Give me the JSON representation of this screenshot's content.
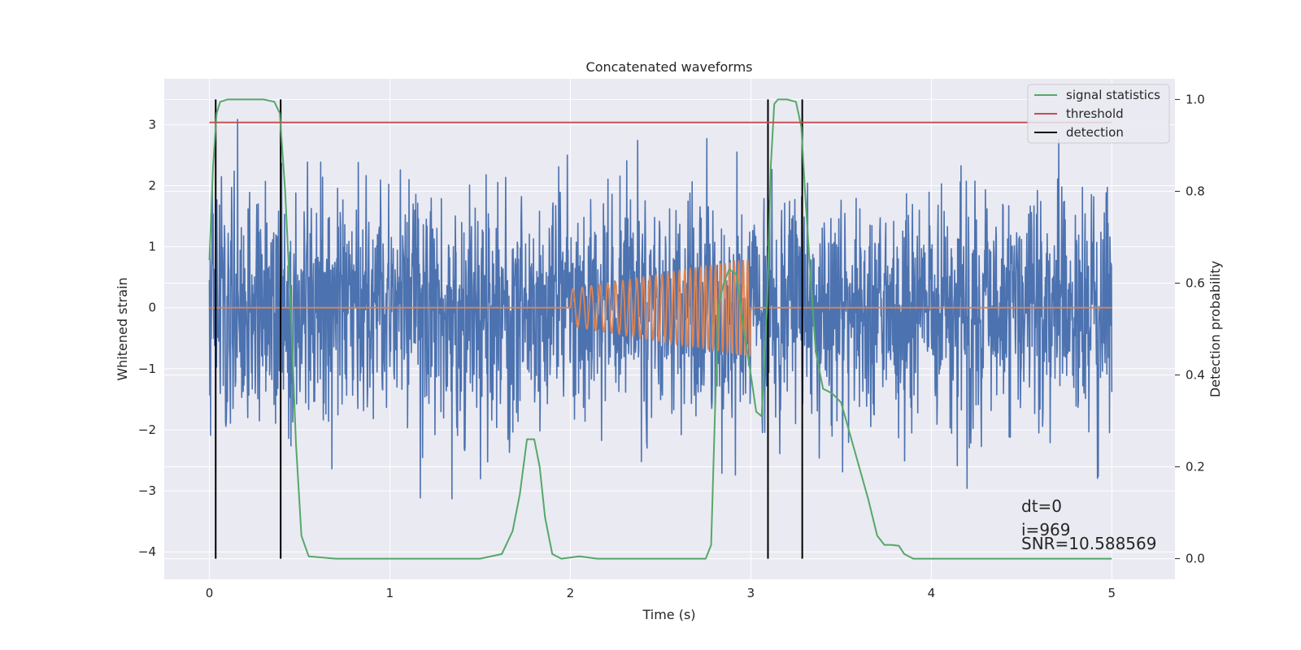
{
  "chart_data": {
    "type": "line",
    "title": "Concatenated waveforms",
    "xlabel": "Time (s)",
    "ylabel_left": "Whitened strain",
    "ylabel_right": "Detection probability",
    "xlim": [
      -0.25,
      5.35
    ],
    "ylim_left": [
      -4.45,
      3.75
    ],
    "ylim_right": [
      -0.045,
      1.045
    ],
    "x_ticks": [
      "0",
      "1",
      "2",
      "3",
      "4",
      "5"
    ],
    "y_ticks_left": [
      "3",
      "2",
      "1",
      "0",
      "−1",
      "−2",
      "−3",
      "−4"
    ],
    "y_ticks_right": [
      "1.0",
      "0.8",
      "0.6",
      "0.4",
      "0.2",
      "0.0"
    ],
    "grid": true,
    "legend_position": "top-right",
    "legend": [
      {
        "label": "signal statistics",
        "color": "#55a868"
      },
      {
        "label": "threshold",
        "color": "#c44e52"
      },
      {
        "label": "detection",
        "color": "#000000"
      }
    ],
    "series": [
      {
        "kind": "noise-strain",
        "color": "#4c72b0",
        "x_range": [
          0,
          5
        ],
        "approx_range": [
          -4.1,
          3.4
        ]
      },
      {
        "kind": "injected-chirp",
        "color": "#dd8452",
        "x_range": [
          2.0,
          3.0
        ],
        "amplitude_start": 0.3,
        "amplitude_end": 0.8,
        "cycles": 30
      },
      {
        "name": "signal statistics",
        "color": "#55a868",
        "axis": "right",
        "x": [
          0.0,
          0.02,
          0.04,
          0.06,
          0.1,
          0.15,
          0.3,
          0.36,
          0.39,
          0.42,
          0.45,
          0.48,
          0.51,
          0.55,
          0.7,
          1.5,
          1.62,
          1.68,
          1.72,
          1.76,
          1.8,
          1.83,
          1.86,
          1.9,
          1.95,
          2.05,
          2.15,
          2.5,
          2.75,
          2.78,
          2.8,
          2.82,
          2.85,
          2.88,
          2.92,
          2.96,
          3.0,
          3.03,
          3.06,
          3.09,
          3.11,
          3.13,
          3.15,
          3.2,
          3.25,
          3.28,
          3.3,
          3.33,
          3.36,
          3.4,
          3.45,
          3.5,
          3.55,
          3.6,
          3.65,
          3.7,
          3.74,
          3.78,
          3.82,
          3.85,
          3.9,
          4.0,
          4.5,
          5.0
        ],
        "y": [
          0.65,
          0.85,
          0.97,
          0.995,
          1.0,
          1.0,
          1.0,
          0.995,
          0.97,
          0.8,
          0.55,
          0.25,
          0.05,
          0.005,
          0.0,
          0.0,
          0.01,
          0.06,
          0.14,
          0.26,
          0.26,
          0.2,
          0.09,
          0.01,
          0.0,
          0.005,
          0.0,
          0.0,
          0.0,
          0.03,
          0.3,
          0.55,
          0.6,
          0.63,
          0.62,
          0.5,
          0.4,
          0.32,
          0.31,
          0.55,
          0.85,
          0.99,
          1.0,
          1.0,
          0.995,
          0.94,
          0.8,
          0.62,
          0.45,
          0.37,
          0.36,
          0.34,
          0.27,
          0.2,
          0.13,
          0.05,
          0.03,
          0.03,
          0.028,
          0.01,
          0.0,
          0.0,
          0.0,
          0.0
        ]
      },
      {
        "name": "threshold",
        "color": "#c44e52",
        "axis": "right",
        "x": [
          0,
          5
        ],
        "y": [
          0.95,
          0.95
        ]
      }
    ],
    "detections": [
      0.035,
      0.395,
      3.095,
      3.285
    ],
    "annotations": [
      "dt=0",
      "i=969",
      "SNR=10.588569"
    ],
    "colors": {
      "background": "#eaeaf2",
      "grid": "#ffffff"
    }
  }
}
